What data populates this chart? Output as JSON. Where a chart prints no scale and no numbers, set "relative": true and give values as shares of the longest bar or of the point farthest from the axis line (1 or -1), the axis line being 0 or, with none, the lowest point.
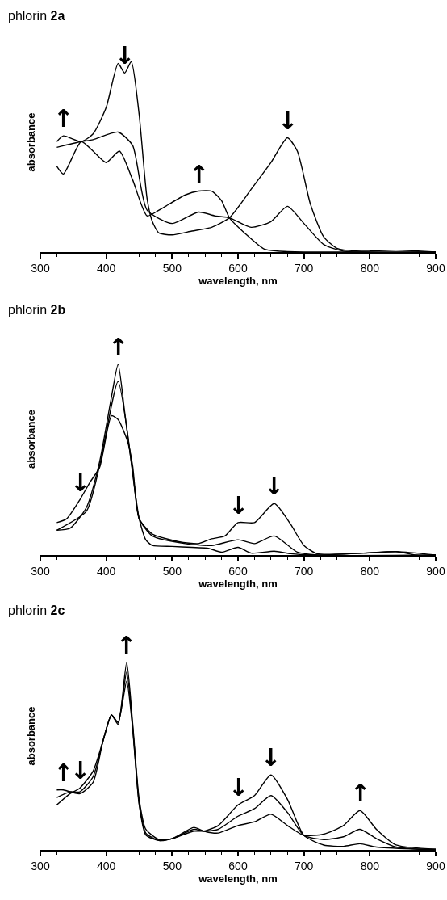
{
  "chart_data": [
    {
      "type": "line",
      "title": "phlorin 2a",
      "xlabel": "wavelength, nm",
      "ylabel": "absorbance",
      "relative": true,
      "xlim": [
        300,
        900
      ],
      "xticks": [
        300,
        400,
        500,
        600,
        700,
        800,
        900
      ],
      "marker": "none",
      "line_style": "solid",
      "series": [
        {
          "color": "#000000",
          "x": [
            325,
            335,
            362,
            380,
            400,
            418,
            428,
            438,
            450,
            462,
            470,
            480,
            500,
            530,
            560,
            587,
            620,
            650,
            675,
            690,
            710,
            730,
            750,
            780,
            800,
            840,
            900
          ],
          "values": [
            0.58,
            0.61,
            0.58,
            0.62,
            0.76,
            0.99,
            0.94,
            1.0,
            0.72,
            0.28,
            0.16,
            0.1,
            0.09,
            0.11,
            0.13,
            0.18,
            0.33,
            0.47,
            0.6,
            0.53,
            0.25,
            0.08,
            0.02,
            0.005,
            0.005,
            0.01,
            0
          ]
        },
        {
          "color": "#000000",
          "x": [
            325,
            362,
            380,
            418,
            440,
            462,
            500,
            540,
            565,
            587,
            620,
            650,
            675,
            700,
            730,
            760,
            900
          ],
          "values": [
            0.55,
            0.58,
            0.59,
            0.63,
            0.56,
            0.22,
            0.15,
            0.21,
            0.19,
            0.18,
            0.13,
            0.16,
            0.24,
            0.15,
            0.04,
            0.005,
            0
          ]
        },
        {
          "color": "#000000",
          "x": [
            325,
            335,
            362,
            380,
            400,
            420,
            440,
            462,
            480,
            520,
            540,
            560,
            575,
            587,
            610,
            640,
            660,
            700,
            900
          ],
          "values": [
            0.45,
            0.41,
            0.58,
            0.53,
            0.47,
            0.53,
            0.38,
            0.19,
            0.22,
            0.3,
            0.32,
            0.32,
            0.27,
            0.18,
            0.1,
            0.015,
            0.005,
            0,
            0
          ]
        }
      ],
      "annotations": [
        {
          "text": "↑",
          "x": 335,
          "y": 0.61
        },
        {
          "text": "↓",
          "x": 428,
          "y": 0.94
        },
        {
          "text": "↑",
          "x": 540,
          "y": 0.32
        },
        {
          "text": "↓",
          "x": 675,
          "y": 0.6
        }
      ]
    },
    {
      "type": "line",
      "title": "phlorin 2b",
      "xlabel": "wavelength, nm",
      "ylabel": "absorbance",
      "relative": true,
      "xlim": [
        300,
        900
      ],
      "xticks": [
        300,
        400,
        500,
        600,
        700,
        800,
        900
      ],
      "marker": "none",
      "line_style": "solid",
      "series": [
        {
          "color": "#000000",
          "x": [
            325,
            340,
            360,
            375,
            390,
            408,
            418,
            432,
            440,
            450,
            470,
            510,
            540,
            560,
            580,
            600,
            625,
            655,
            680,
            700,
            720,
            790,
            840,
            900
          ],
          "values": [
            0.17,
            0.19,
            0.29,
            0.38,
            0.46,
            0.73,
            0.71,
            0.6,
            0.47,
            0.19,
            0.11,
            0.07,
            0.06,
            0.085,
            0.1,
            0.17,
            0.17,
            0.27,
            0.16,
            0.05,
            0.007,
            0.01,
            0.018,
            0
          ]
        },
        {
          "color": "#000000",
          "x": [
            325,
            370,
            390,
            418,
            440,
            450,
            470,
            520,
            560,
            600,
            625,
            655,
            690,
            720,
            900
          ],
          "values": [
            0.13,
            0.23,
            0.47,
            0.91,
            0.44,
            0.19,
            0.1,
            0.06,
            0.05,
            0.08,
            0.06,
            0.1,
            0.015,
            0,
            0
          ]
        },
        {
          "color": "#000000",
          "x": [
            325,
            345,
            370,
            390,
            408,
            418,
            428,
            440,
            450,
            460,
            470,
            500,
            530,
            555,
            575,
            600,
            620,
            655,
            680,
            720,
            790,
            840,
            870,
            900
          ],
          "values": [
            0.13,
            0.14,
            0.25,
            0.49,
            0.83,
            1.0,
            0.75,
            0.43,
            0.19,
            0.08,
            0.05,
            0.045,
            0.04,
            0.035,
            0.015,
            0.04,
            0.01,
            0.02,
            0.007,
            0,
            0.01,
            0.018,
            0,
            0
          ]
        }
      ],
      "annotations": [
        {
          "text": "↑",
          "x": 418,
          "y": 1.0
        },
        {
          "text": "↓",
          "x": 360,
          "y": 0.29
        },
        {
          "text": "↓",
          "x": 600,
          "y": 0.17
        },
        {
          "text": "↓",
          "x": 655,
          "y": 0.27
        }
      ]
    },
    {
      "type": "line",
      "title": "phlorin 2c",
      "xlabel": "wavelength, nm",
      "ylabel": "absorbance",
      "relative": true,
      "xlim": [
        300,
        900
      ],
      "xticks": [
        300,
        400,
        500,
        600,
        700,
        800,
        900
      ],
      "marker": "none",
      "line_style": "solid",
      "series": [
        {
          "color": "#000000",
          "x": [
            325,
            345,
            360,
            380,
            395,
            408,
            418,
            431,
            440,
            450,
            460,
            480,
            500,
            533,
            548,
            570,
            600,
            625,
            650,
            675,
            700,
            730,
            760,
            785,
            810,
            900
          ],
          "values": [
            0.24,
            0.3,
            0.33,
            0.42,
            0.58,
            0.72,
            0.68,
            0.9,
            0.65,
            0.24,
            0.08,
            0.05,
            0.06,
            0.1,
            0.1,
            0.13,
            0.24,
            0.29,
            0.4,
            0.27,
            0.077,
            0.026,
            0.019,
            0.033,
            0.015,
            0
          ]
        },
        {
          "color": "#000000",
          "x": [
            325,
            345,
            360,
            380,
            395,
            408,
            418,
            431,
            440,
            450,
            460,
            480,
            500,
            533,
            548,
            570,
            600,
            625,
            650,
            675,
            700,
            730,
            760,
            785,
            810,
            840,
            900
          ],
          "values": [
            0.28,
            0.31,
            0.31,
            0.39,
            0.58,
            0.72,
            0.68,
            0.95,
            0.66,
            0.25,
            0.09,
            0.05,
            0.06,
            0.11,
            0.1,
            0.11,
            0.18,
            0.22,
            0.29,
            0.2,
            0.077,
            0.055,
            0.07,
            0.11,
            0.06,
            0.015,
            0
          ]
        },
        {
          "color": "#000000",
          "x": [
            325,
            335,
            360,
            380,
            395,
            408,
            418,
            431,
            440,
            450,
            460,
            480,
            500,
            533,
            548,
            570,
            600,
            625,
            650,
            675,
            700,
            730,
            760,
            785,
            810,
            840,
            900
          ],
          "values": [
            0.32,
            0.32,
            0.3,
            0.36,
            0.58,
            0.72,
            0.67,
            1.0,
            0.68,
            0.27,
            0.11,
            0.055,
            0.06,
            0.12,
            0.1,
            0.09,
            0.13,
            0.15,
            0.19,
            0.13,
            0.077,
            0.084,
            0.13,
            0.21,
            0.11,
            0.026,
            0.004
          ]
        }
      ],
      "annotations": [
        {
          "text": "↑",
          "x": 431,
          "y": 1.0
        },
        {
          "text": "↑",
          "x": 335,
          "y": 0.32
        },
        {
          "text": "↓",
          "x": 360,
          "y": 0.33
        },
        {
          "text": "↓",
          "x": 600,
          "y": 0.24
        },
        {
          "text": "↓",
          "x": 650,
          "y": 0.4
        },
        {
          "text": "↑",
          "x": 785,
          "y": 0.21
        }
      ]
    }
  ]
}
